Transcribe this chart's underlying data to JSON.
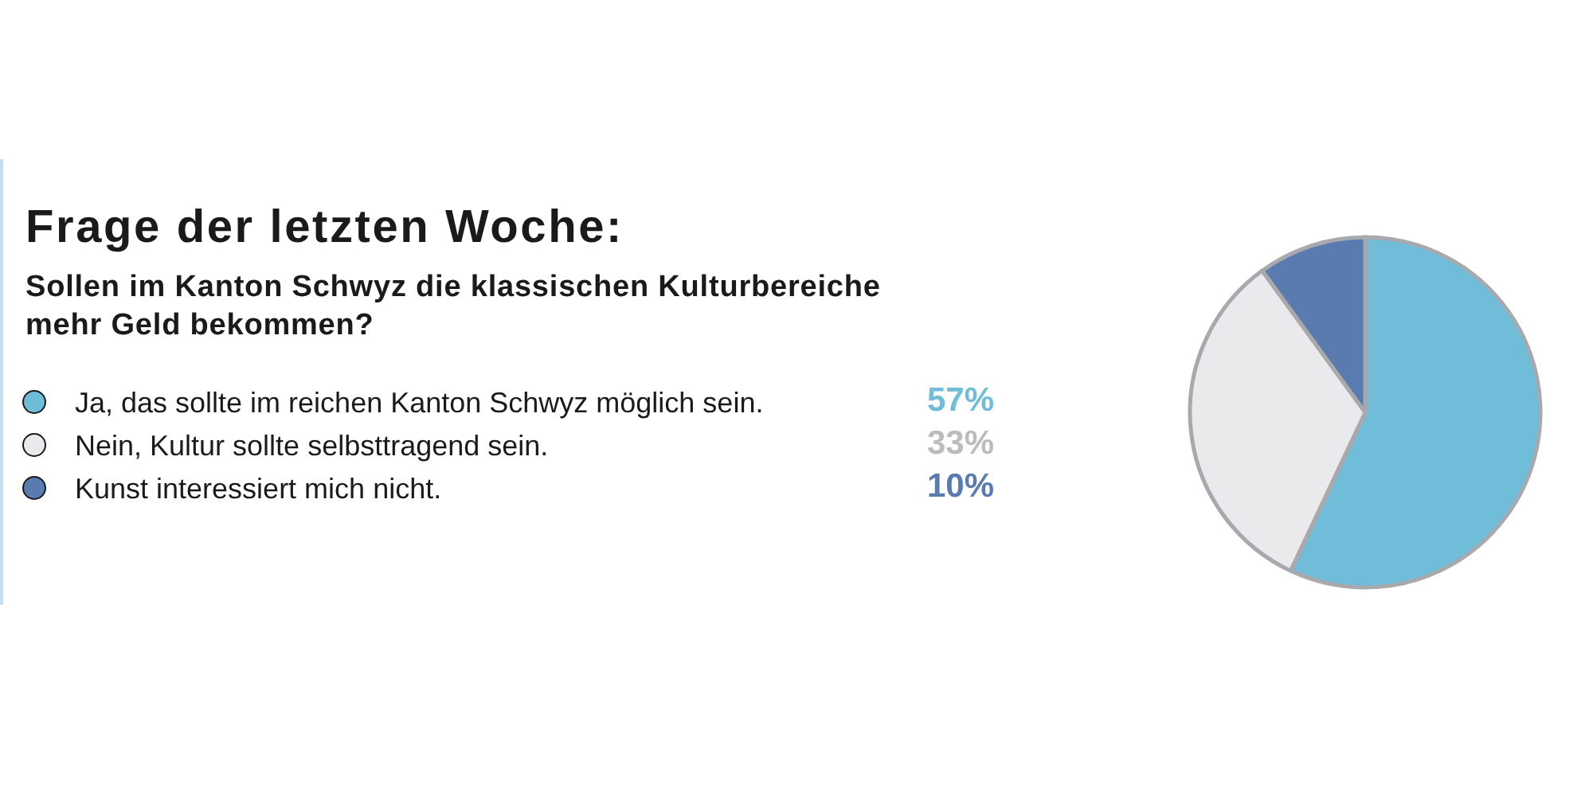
{
  "chart_data": {
    "type": "pie",
    "title": "Frage der letzten Woche:",
    "subtitle": "Sollen im Kanton Schwyz die klassischen Kulturbereiche mehr Geld bekommen?",
    "categories": [
      "Ja, das sollte im reichen Kanton Schwyz möglich sein.",
      "Nein, Kultur sollte selbsttragend sein.",
      "Kunst interessiert mich nicht."
    ],
    "values": [
      57,
      33,
      10
    ],
    "value_labels": [
      "57%",
      "33%",
      "10%"
    ],
    "colors": [
      "#6fbdd8",
      "#eaeaec",
      "#5a7bb0"
    ],
    "legend": "left"
  }
}
